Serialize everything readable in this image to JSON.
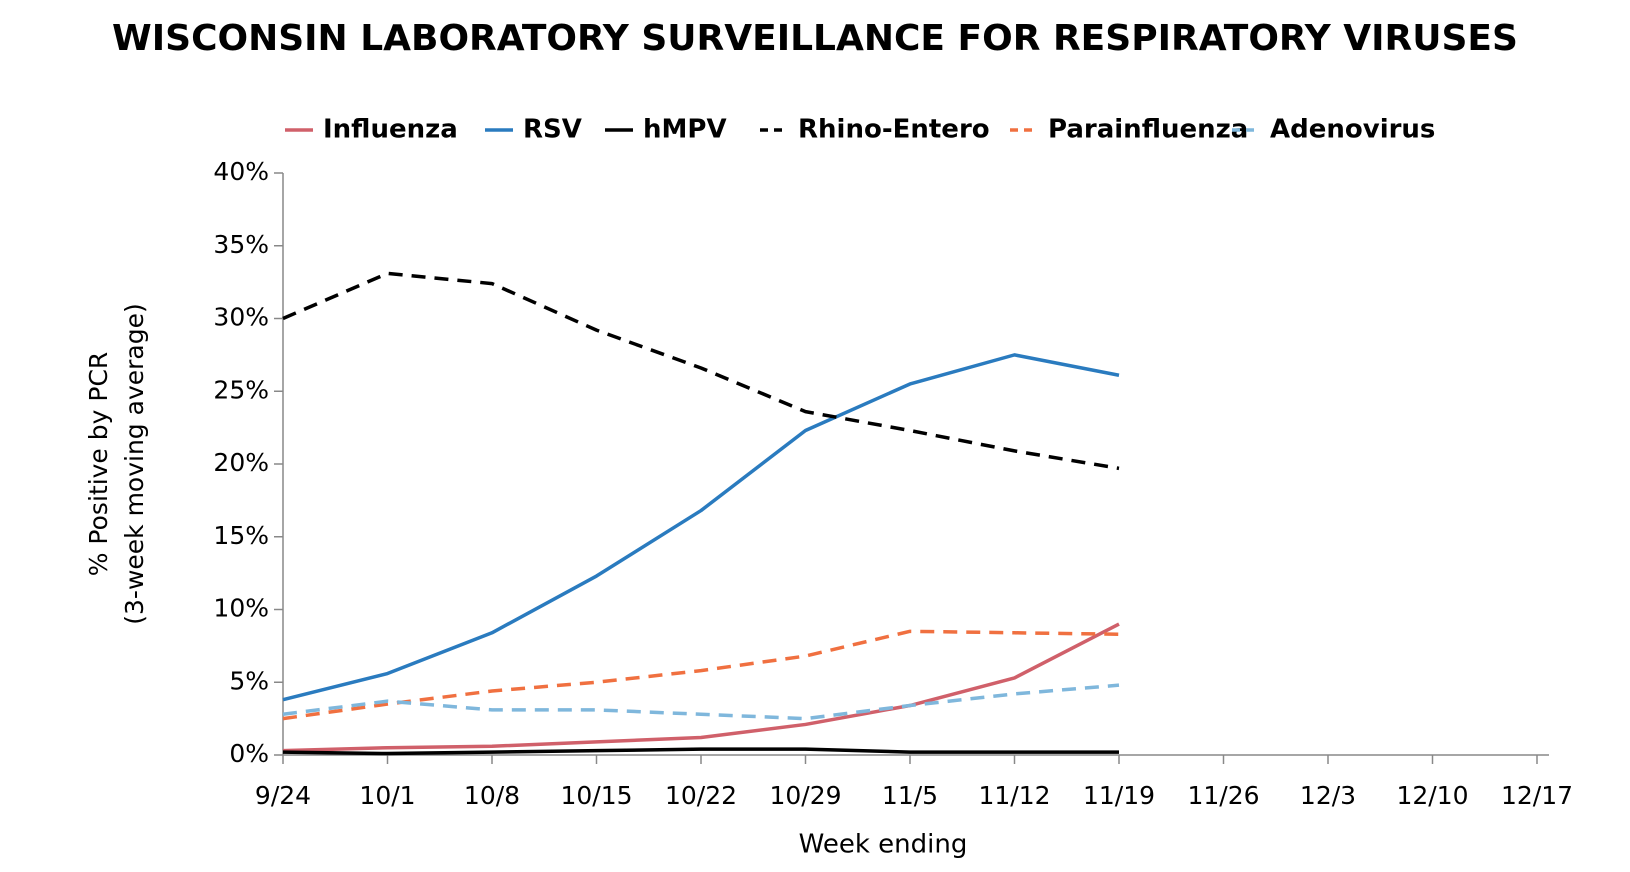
{
  "chart_data": {
    "type": "line",
    "title": "WISCONSIN LABORATORY SURVEILLANCE FOR RESPIRATORY VIRUSES",
    "x_label": "Week ending",
    "y_label": [
      "% Positive by PCR",
      "(3-week moving average)"
    ],
    "categories": [
      "9/24",
      "10/1",
      "10/8",
      "10/15",
      "10/22",
      "10/29",
      "11/5",
      "11/12",
      "11/19",
      "11/26",
      "12/3",
      "12/10",
      "12/17"
    ],
    "series": [
      {
        "name": "Influenza",
        "color": "#d0606a",
        "text_color": "#d0606a",
        "dashed": false,
        "values": [
          0.3,
          0.5,
          0.6,
          0.9,
          1.2,
          2.1,
          3.4,
          5.3,
          9.0,
          null,
          null,
          null,
          null
        ]
      },
      {
        "name": "RSV",
        "color": "#2a7bbf",
        "text_color": "#2a7bbf",
        "dashed": false,
        "values": [
          3.8,
          5.6,
          8.4,
          12.3,
          16.8,
          22.3,
          25.5,
          27.5,
          26.1,
          null,
          null,
          null,
          null
        ]
      },
      {
        "name": "hMPV",
        "color": "#000000",
        "text_color": "#333333",
        "dashed": false,
        "values": [
          0.2,
          0.1,
          0.2,
          0.3,
          0.4,
          0.4,
          0.2,
          0.2,
          0.2,
          null,
          null,
          null,
          null
        ]
      },
      {
        "name": "Rhino-Entero",
        "color": "#000000",
        "text_color": "#333333",
        "dashed": true,
        "values": [
          30.0,
          33.1,
          32.4,
          29.2,
          26.6,
          23.6,
          22.3,
          20.9,
          19.7,
          null,
          null,
          null,
          null
        ]
      },
      {
        "name": "Parainfluenza",
        "color": "#f07040",
        "text_color": "#000000",
        "dashed": true,
        "values": [
          2.5,
          3.5,
          4.4,
          5.0,
          5.8,
          6.8,
          8.5,
          8.4,
          8.3,
          null,
          null,
          null,
          null
        ]
      },
      {
        "name": "Adenovirus",
        "color": "#7fb7dc",
        "text_color": "#000000",
        "dashed": true,
        "values": [
          2.8,
          3.7,
          3.1,
          3.1,
          2.8,
          2.5,
          3.4,
          4.2,
          4.8,
          null,
          null,
          null,
          null
        ]
      }
    ],
    "ylim": [
      0,
      40
    ],
    "yticks": [
      {
        "value": 0,
        "label": "0%"
      },
      {
        "value": 5,
        "label": "5%"
      },
      {
        "value": 10,
        "label": "10%"
      },
      {
        "value": 15,
        "label": "15%"
      },
      {
        "value": 20,
        "label": "20%"
      },
      {
        "value": 25,
        "label": "25%"
      },
      {
        "value": 30,
        "label": "30%"
      },
      {
        "value": 35,
        "label": "35%"
      },
      {
        "value": 40,
        "label": "40%"
      }
    ]
  }
}
